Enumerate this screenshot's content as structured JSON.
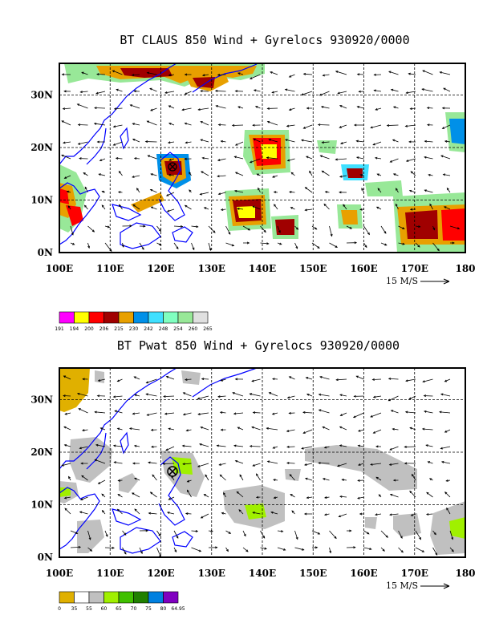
{
  "maps": [
    {
      "id": "claus",
      "title": "BT CLAUS 850 Wind + Gyrelocs 930920/0000",
      "x_labels": [
        "100E",
        "110E",
        "120E",
        "130E",
        "140E",
        "150E",
        "160E",
        "170E",
        "180"
      ],
      "y_labels": [
        "0N",
        "10N",
        "20N",
        "30N"
      ],
      "scale_label": "15 M/S",
      "legend_values": [
        "191",
        "194",
        "200",
        "206",
        "215",
        "230",
        "242",
        "248",
        "254",
        "260",
        "265"
      ],
      "legend_colors": [
        "#ff00ff",
        "#ffff00",
        "#ff0000",
        "#a00000",
        "#e8a000",
        "#0090e8",
        "#40e0ff",
        "#80ffc0",
        "#98e898",
        "#e0e0e0"
      ]
    },
    {
      "id": "pwat",
      "title": "BT Pwat 850 Wind + Gyrelocs 930920/0000",
      "x_labels": [
        "100E",
        "110E",
        "120E",
        "130E",
        "140E",
        "150E",
        "160E",
        "170E",
        "180"
      ],
      "y_labels": [
        "0N",
        "10N",
        "20N",
        "30N"
      ],
      "scale_label": "15 M/S",
      "legend_values": [
        "0",
        "35",
        "55",
        "60",
        "65",
        "70",
        "75",
        "80",
        "64.95"
      ],
      "legend_colors": [
        "#e0b000",
        "#ffffff",
        "#c0c0c0",
        "#a0f000",
        "#40c000",
        "#208000",
        "#0080e0",
        "#8000c0"
      ]
    }
  ],
  "colors": {
    "coast": "#0000ff",
    "grid": "#000000",
    "arrow": "#000000"
  }
}
